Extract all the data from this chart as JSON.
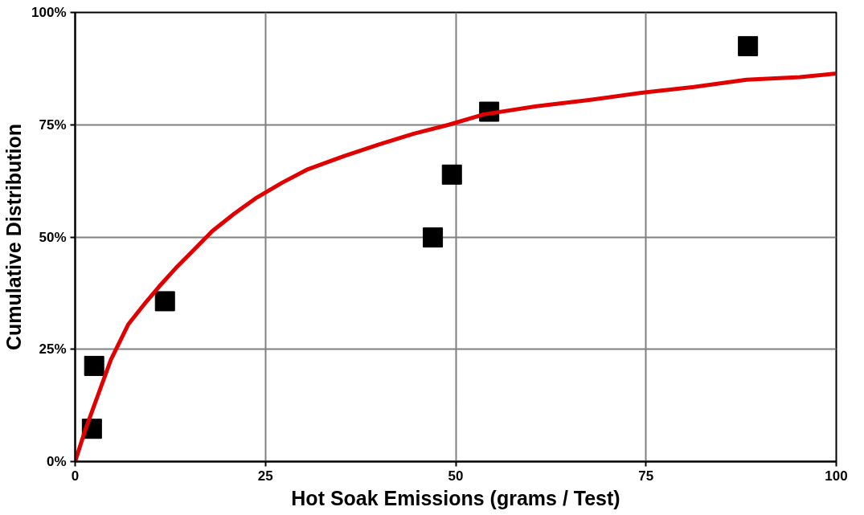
{
  "chart_data": {
    "type": "scatter",
    "xlabel": "Hot Soak Emissions (grams / Test)",
    "ylabel": "Cumulative Distribution",
    "xlim": [
      0,
      100
    ],
    "xticks": [
      0,
      25,
      50,
      75,
      100
    ],
    "ylim": [
      0,
      100
    ],
    "yticks": [
      {
        "value": 0,
        "label": "0%"
      },
      {
        "value": 25,
        "label": "25%"
      },
      {
        "value": 50,
        "label": "50%"
      },
      {
        "value": 75,
        "label": "75%"
      },
      {
        "value": 100,
        "label": "100%"
      }
    ],
    "grid": true,
    "series": [
      {
        "marker": "square",
        "color": "#000000",
        "x": [
          2.2,
          2.5,
          11.8,
          47.0,
          49.5,
          54.4,
          88.4
        ],
        "values": [
          7.3,
          21.3,
          35.7,
          49.9,
          63.9,
          77.9,
          92.5
        ]
      },
      {
        "type": "line",
        "line_style": "solid",
        "color": "#e00000",
        "x": [
          0,
          1.3,
          3,
          4.7,
          7,
          9.3,
          11,
          13.4,
          15.7,
          18,
          20.9,
          23.7,
          27.2,
          30.6,
          35.3,
          39.9,
          44.5,
          49.1,
          53.7,
          60.6,
          67.5,
          74.4,
          81.3,
          88.2,
          95.2,
          100
        ],
        "values": [
          0,
          6.9,
          14.8,
          22.7,
          30.6,
          35.5,
          38.9,
          43.4,
          47.3,
          51.3,
          55.2,
          58.6,
          62.1,
          65.1,
          68,
          70.6,
          73,
          75,
          77.3,
          79.1,
          80.5,
          82.1,
          83.4,
          85,
          85.6,
          86.4
        ]
      }
    ]
  }
}
